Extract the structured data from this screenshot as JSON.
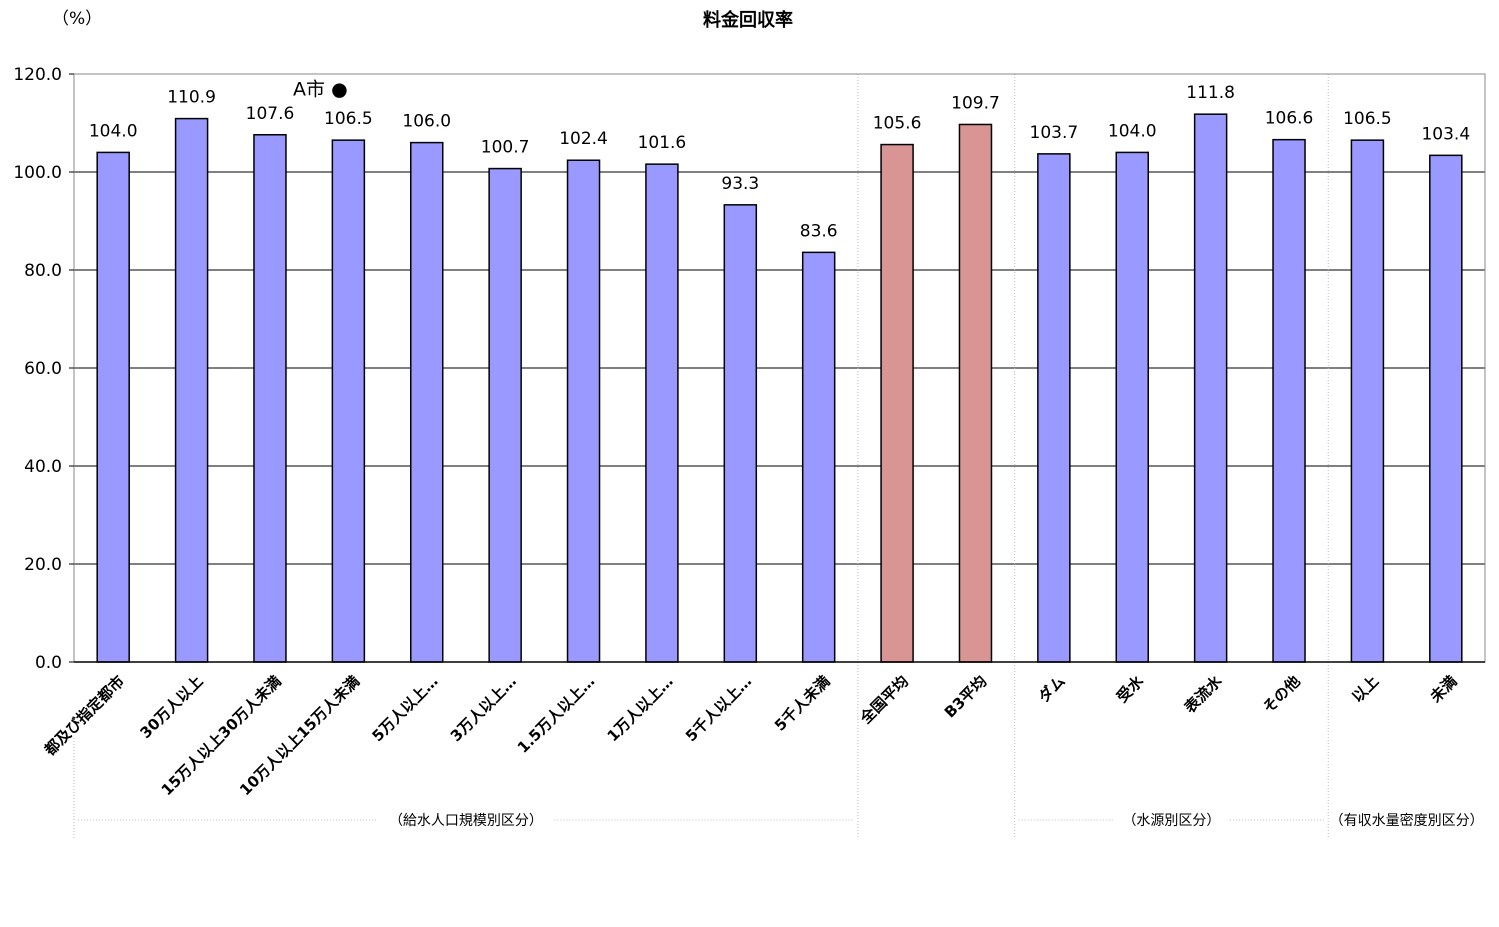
{
  "chart_data": {
    "type": "bar",
    "title": "料金回収率",
    "ylabel": "（%）",
    "ylim": [
      0,
      120
    ],
    "ytick_step": 20,
    "yticks": [
      "0.0",
      "20.0",
      "40.0",
      "60.0",
      "80.0",
      "100.0",
      "120.0"
    ],
    "grid": true,
    "categories": [
      "都及び指定都市",
      "30万人以上",
      "15万人以上30万人未満",
      "10万人以上15万人未満",
      "5万人以上…",
      "3万人以上…",
      "1.5万人以上…",
      "1万人以上…",
      "5千人以上…",
      "5千人未満",
      "全国平均",
      "B3平均",
      "ダム",
      "受水",
      "表流水",
      "その他",
      "以上",
      "未満"
    ],
    "values": [
      104.0,
      110.9,
      107.6,
      106.5,
      106.0,
      100.7,
      102.4,
      101.6,
      93.3,
      83.6,
      105.6,
      109.7,
      103.7,
      104.0,
      111.8,
      106.6,
      106.5,
      103.4
    ],
    "value_labels": [
      "104.0",
      "110.9",
      "107.6",
      "106.5",
      "106.0",
      "100.7",
      "102.4",
      "101.6",
      "93.3",
      "83.6",
      "105.6",
      "109.7",
      "103.7",
      "104.0",
      "111.8",
      "106.6",
      "106.5",
      "103.4"
    ],
    "colors": [
      "#9999ff",
      "#9999ff",
      "#9999ff",
      "#9999ff",
      "#9999ff",
      "#9999ff",
      "#9999ff",
      "#9999ff",
      "#9999ff",
      "#9999ff",
      "#d99594",
      "#d99594",
      "#9999ff",
      "#9999ff",
      "#9999ff",
      "#9999ff",
      "#9999ff",
      "#9999ff"
    ],
    "groups": [
      {
        "label": "（給水人口規模別区分）",
        "start": 0,
        "end": 9
      },
      {
        "label": "（水源別区分）",
        "start": 12,
        "end": 15
      },
      {
        "label": "（有収水量密度別区分）",
        "start": 16,
        "end": 17
      }
    ],
    "annotations": [
      {
        "text": "A市 ●",
        "category_index": 3,
        "y": 117
      }
    ]
  }
}
